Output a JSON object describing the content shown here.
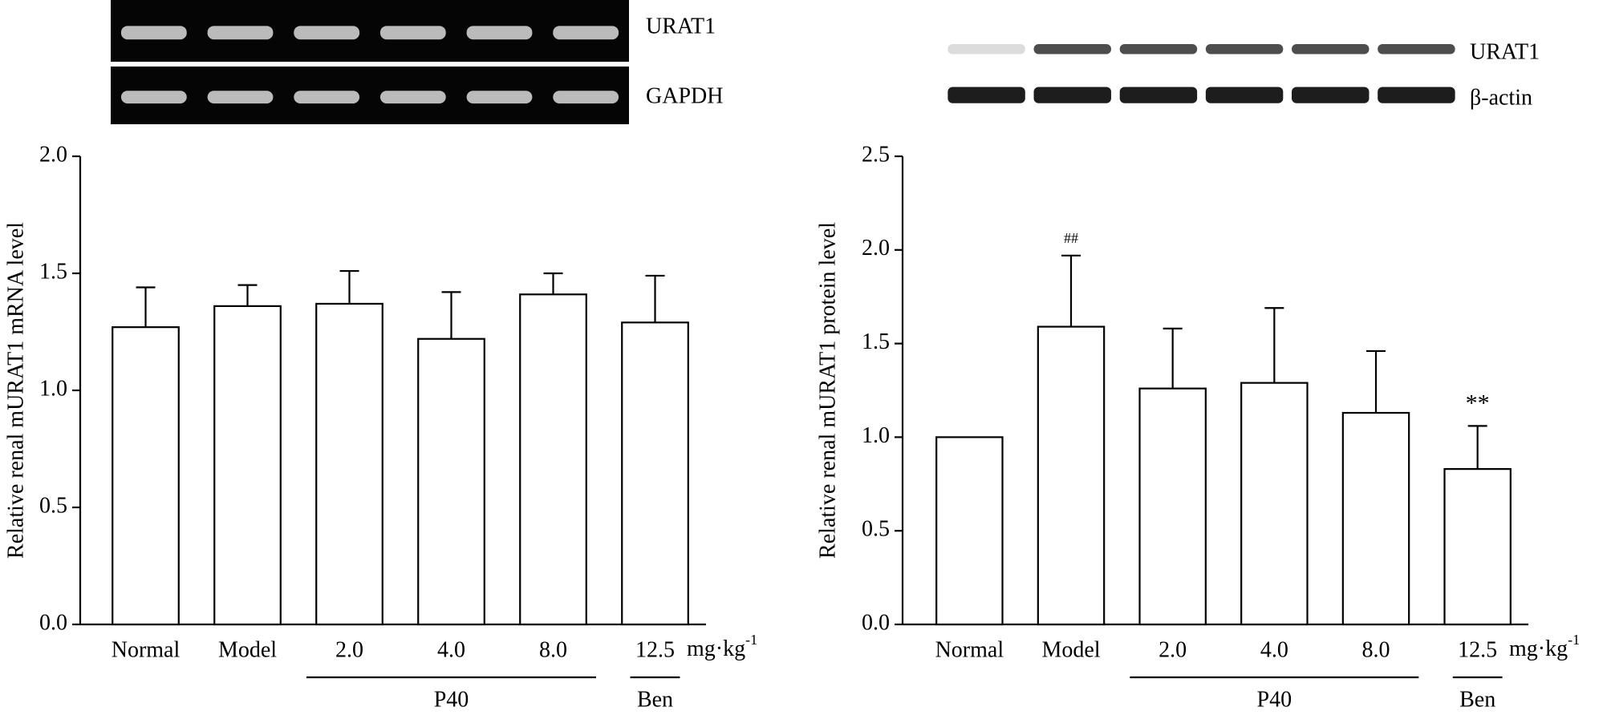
{
  "chart_data": [
    {
      "type": "bar",
      "ylabel": "Relative renal mURAT1 mRNA level",
      "blot_labels": [
        "URAT1",
        "GAPDH"
      ],
      "categories": [
        "Normal",
        "Model",
        "2.0",
        "4.0",
        "8.0",
        "12.5"
      ],
      "values": [
        1.27,
        1.36,
        1.37,
        1.22,
        1.41,
        1.29
      ],
      "errors": [
        0.17,
        0.09,
        0.14,
        0.2,
        0.09,
        0.2
      ],
      "color": "#ffffff",
      "ylim": [
        0,
        2
      ],
      "yticks": [
        {
          "value": 0,
          "label": "0.0"
        },
        {
          "value": 0.5,
          "label": "0.5"
        },
        {
          "value": 1,
          "label": "1.0"
        },
        {
          "value": 1.5,
          "label": "1.5"
        },
        {
          "value": 2,
          "label": "2.0"
        }
      ],
      "unit": "mg·kg",
      "unit_sup": "-1",
      "groups": [
        {
          "label": "P40",
          "start": 2,
          "end": 4
        },
        {
          "label": "Ben",
          "start": 5,
          "end": 5
        }
      ],
      "annotations": []
    },
    {
      "type": "bar",
      "ylabel": "Relative renal mURAT1 protein level",
      "blot_labels": [
        "URAT1",
        "β-actin"
      ],
      "categories": [
        "Normal",
        "Model",
        "2.0",
        "4.0",
        "8.0",
        "12.5"
      ],
      "values": [
        1.0,
        1.59,
        1.26,
        1.29,
        1.13,
        0.83
      ],
      "errors": [
        0,
        0.38,
        0.32,
        0.4,
        0.33,
        0.23
      ],
      "color": "#ffffff",
      "ylim": [
        0,
        2.5
      ],
      "yticks": [
        {
          "value": 0,
          "label": "0.0"
        },
        {
          "value": 0.5,
          "label": "0.5"
        },
        {
          "value": 1,
          "label": "1.0"
        },
        {
          "value": 1.5,
          "label": "1.5"
        },
        {
          "value": 2,
          "label": "2.0"
        },
        {
          "value": 2.5,
          "label": "2.5"
        }
      ],
      "unit": "mg·kg",
      "unit_sup": "-1",
      "groups": [
        {
          "label": "P40",
          "start": 2,
          "end": 4
        },
        {
          "label": "Ben",
          "start": 5,
          "end": 5
        }
      ],
      "annotations": [
        {
          "text": "##",
          "index": 1
        },
        {
          "text": "**",
          "index": 5
        }
      ]
    }
  ]
}
